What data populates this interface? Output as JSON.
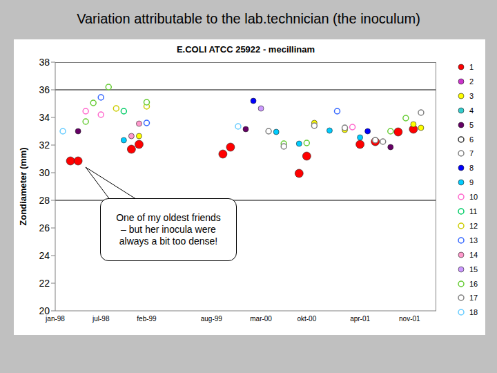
{
  "page_title": "Variation attributable to the lab.technician (the inoculum)",
  "chart_data": {
    "type": "scatter",
    "title": "E.COLI ATCC 25922 - mecillinam",
    "y_label": "Zondiameter (mm)",
    "annotation": "One of my oldest friends – but her inocula were always a bit too dense!",
    "xlim": [
      -1,
      49
    ],
    "xticks": [
      {
        "value": -1,
        "label": "jan-98"
      },
      {
        "value": 5,
        "label": "jul-98"
      },
      {
        "value": 11,
        "label": "feb-99"
      },
      {
        "value": 19.5,
        "label": "aug-99"
      },
      {
        "value": 26,
        "label": "mar-00"
      },
      {
        "value": 32,
        "label": "okt-00"
      },
      {
        "value": 39,
        "label": "apr-01"
      },
      {
        "value": 45.5,
        "label": "nov-01"
      }
    ],
    "ylim": [
      20,
      38
    ],
    "yticks": [
      20,
      22,
      24,
      26,
      28,
      30,
      32,
      34,
      36,
      38
    ],
    "reference_lines": [
      28,
      36
    ],
    "grid": false,
    "legend": "right",
    "series": [
      {
        "name": "1",
        "color": "#ff0000",
        "marker": "circle_large",
        "x": [
          1,
          2,
          9,
          10,
          21,
          22,
          31,
          32,
          39,
          41,
          44,
          46
        ],
        "values": [
          30.85,
          30.85,
          31.7,
          32.05,
          31.35,
          31.85,
          29.95,
          31.2,
          32.05,
          32.25,
          32.95,
          33.15
        ]
      },
      {
        "name": "2",
        "color": "#cc33cc",
        "marker": "circle",
        "x": [],
        "values": []
      },
      {
        "name": "3",
        "color": "#ffff00",
        "marker": "circle",
        "x": [
          10,
          33,
          37,
          46,
          47
        ],
        "values": [
          32.65,
          33.6,
          33.1,
          33.5,
          33.25
        ]
      },
      {
        "name": "4",
        "color": "#33cccc",
        "marker": "circle",
        "x": [],
        "values": []
      },
      {
        "name": "5",
        "color": "#660066",
        "marker": "circle",
        "x": [
          2,
          24,
          43
        ],
        "values": [
          33.0,
          33.15,
          31.85
        ]
      },
      {
        "name": "6",
        "color": "#333333",
        "marker": "circle_open",
        "x": [],
        "values": []
      },
      {
        "name": "7",
        "color": "#808080",
        "marker": "circle_open",
        "x": [],
        "values": []
      },
      {
        "name": "8",
        "color": "#0000ff",
        "marker": "circle",
        "x": [
          25,
          40
        ],
        "values": [
          35.2,
          33.0
        ]
      },
      {
        "name": "9",
        "color": "#00ccff",
        "marker": "circle",
        "x": [
          8,
          28,
          31,
          35,
          39
        ],
        "values": [
          32.35,
          32.95,
          32.1,
          33.05,
          32.55
        ]
      },
      {
        "name": "10",
        "color": "#ff66cc",
        "marker": "circle_open",
        "x": [
          3,
          5,
          38
        ],
        "values": [
          34.45,
          34.2,
          33.3
        ]
      },
      {
        "name": "11",
        "color": "#00cc66",
        "marker": "circle_open",
        "x": [
          8
        ],
        "values": [
          34.45
        ]
      },
      {
        "name": "12",
        "color": "#cccc00",
        "marker": "circle_open",
        "x": [
          7,
          11
        ],
        "values": [
          34.65,
          34.8
        ]
      },
      {
        "name": "13",
        "color": "#3366ff",
        "marker": "circle_open",
        "x": [
          5,
          11,
          36
        ],
        "values": [
          35.45,
          33.6,
          34.45
        ]
      },
      {
        "name": "14",
        "color": "#ff99cc",
        "marker": "circle",
        "x": [
          9,
          10
        ],
        "values": [
          32.65,
          33.55
        ]
      },
      {
        "name": "15",
        "color": "#cc99ff",
        "marker": "circle",
        "x": [
          26
        ],
        "values": [
          34.65
        ]
      },
      {
        "name": "16",
        "color": "#66cc33",
        "marker": "circle_open",
        "x": [
          3,
          4,
          6,
          11,
          29,
          32,
          43,
          45
        ],
        "values": [
          33.7,
          35.05,
          36.2,
          35.1,
          32.1,
          32.15,
          33.0,
          33.95
        ]
      },
      {
        "name": "17",
        "color": "#808080",
        "marker": "circle_open",
        "x": [
          27,
          29,
          33,
          37,
          41,
          42,
          47
        ],
        "values": [
          33.0,
          31.9,
          33.4,
          33.25,
          32.35,
          32.25,
          34.35
        ]
      },
      {
        "name": "18",
        "color": "#66ccff",
        "marker": "circle_open",
        "x": [
          0,
          23
        ],
        "values": [
          33.0,
          33.35
        ]
      }
    ]
  }
}
